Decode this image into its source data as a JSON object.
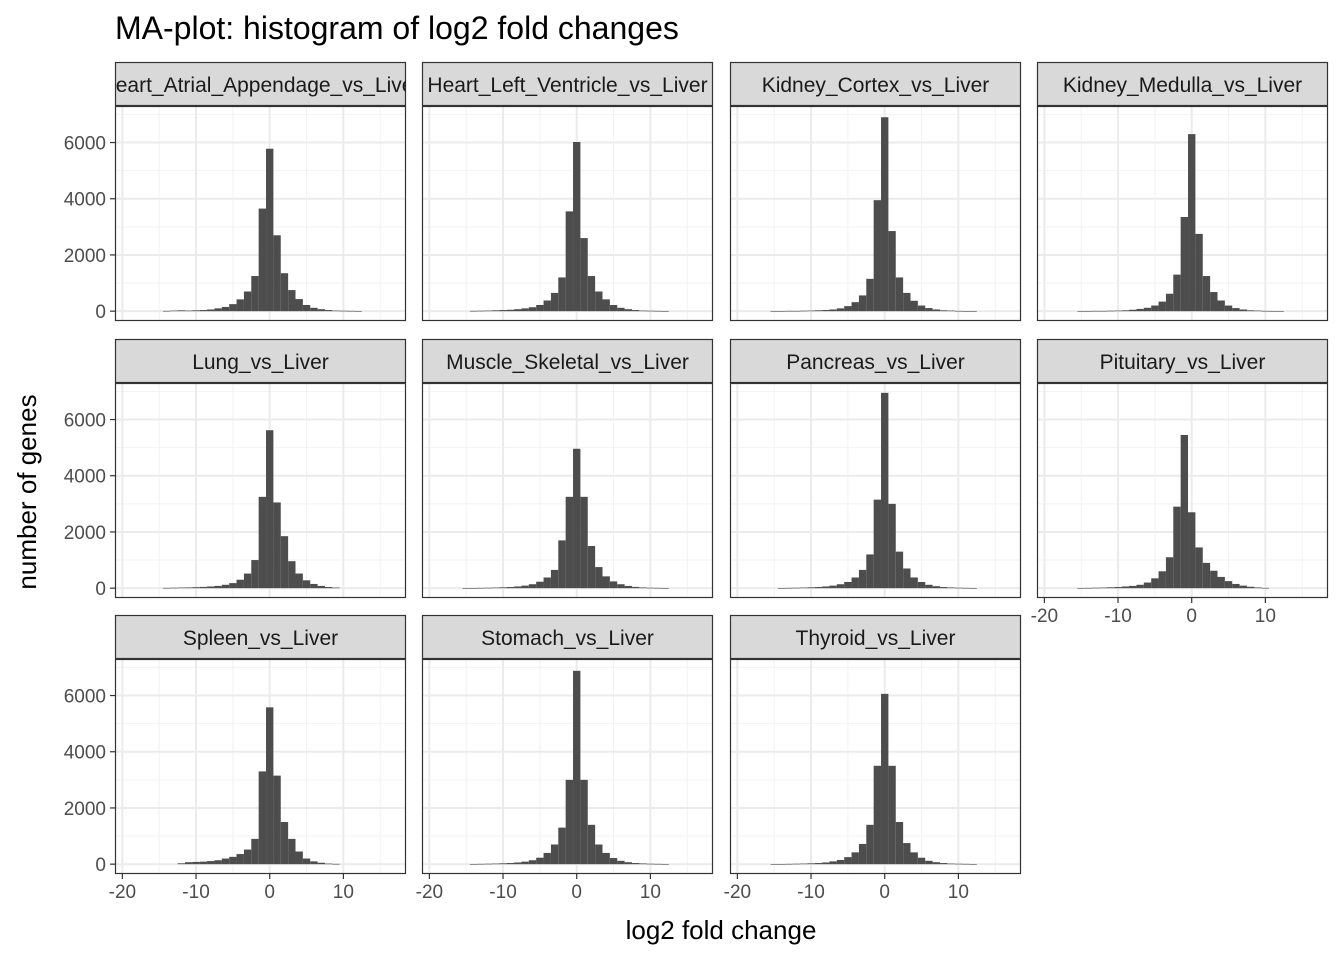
{
  "chart_data": {
    "type": "bar",
    "title": "MA-plot: histogram of log2 fold changes",
    "xlabel": "log2 fold change",
    "ylabel": "number of genes",
    "xlim": [
      -21,
      18.5
    ],
    "ylim": [
      -350,
      7300
    ],
    "x_ticks": [
      -20,
      -10,
      0,
      10
    ],
    "x_tick_labels": [
      "-20",
      "-10",
      "0",
      "10"
    ],
    "y_ticks": [
      0,
      2000,
      4000,
      6000
    ],
    "y_tick_labels": [
      "0",
      "2000",
      "4000",
      "6000"
    ],
    "bin_width": 1,
    "grid": true,
    "colors": {
      "bar": "#4d4d4d",
      "strip": "#d9d9d9",
      "panel_border": "#333333",
      "grid_major": "#ebebeb"
    },
    "facets": [
      {
        "label": "Heart_Atrial_Appendage_vs_Liver",
        "x": [
          -14,
          -13,
          -12,
          -11,
          -10,
          -9,
          -8,
          -7,
          -6,
          -5,
          -4,
          -3,
          -2,
          -1,
          0,
          1,
          2,
          3,
          4,
          5,
          6,
          7,
          8,
          9,
          10,
          11,
          12
        ],
        "values": [
          10,
          20,
          30,
          20,
          30,
          40,
          60,
          100,
          150,
          250,
          420,
          700,
          1250,
          3650,
          5780,
          2700,
          1350,
          750,
          430,
          220,
          120,
          70,
          40,
          20,
          15,
          10,
          5
        ]
      },
      {
        "label": "Heart_Left_Ventricle_vs_Liver",
        "x": [
          -14,
          -13,
          -12,
          -11,
          -10,
          -9,
          -8,
          -7,
          -6,
          -5,
          -4,
          -3,
          -2,
          -1,
          0,
          1,
          2,
          3,
          4,
          5,
          6,
          7,
          8,
          9,
          10,
          11,
          12
        ],
        "values": [
          10,
          15,
          20,
          30,
          40,
          50,
          70,
          100,
          140,
          220,
          380,
          650,
          1200,
          3550,
          6020,
          2600,
          1250,
          700,
          420,
          220,
          120,
          70,
          40,
          20,
          15,
          10,
          5
        ]
      },
      {
        "label": "Kidney_Cortex_vs_Liver",
        "x": [
          -15,
          -14,
          -13,
          -12,
          -11,
          -10,
          -9,
          -8,
          -7,
          -6,
          -5,
          -4,
          -3,
          -2,
          -1,
          0,
          1,
          2,
          3,
          4,
          5,
          6,
          7,
          8,
          9,
          10,
          11,
          12
        ],
        "values": [
          5,
          5,
          10,
          10,
          15,
          20,
          30,
          40,
          60,
          100,
          180,
          320,
          560,
          1150,
          3950,
          6900,
          2850,
          1200,
          650,
          370,
          200,
          110,
          60,
          30,
          20,
          10,
          5,
          5
        ]
      },
      {
        "label": "Kidney_Medulla_vs_Liver",
        "x": [
          -15,
          -14,
          -13,
          -12,
          -11,
          -10,
          -9,
          -8,
          -7,
          -6,
          -5,
          -4,
          -3,
          -2,
          -1,
          0,
          1,
          2,
          3,
          4,
          5,
          6,
          7,
          8,
          9,
          10,
          11,
          12
        ],
        "values": [
          5,
          5,
          10,
          10,
          15,
          20,
          30,
          50,
          80,
          120,
          200,
          340,
          620,
          1300,
          3350,
          6300,
          2750,
          1250,
          680,
          380,
          200,
          110,
          60,
          30,
          20,
          10,
          5,
          5
        ]
      },
      {
        "label": "Lung_vs_Liver",
        "x": [
          -14,
          -13,
          -12,
          -11,
          -10,
          -9,
          -8,
          -7,
          -6,
          -5,
          -4,
          -3,
          -2,
          -1,
          0,
          1,
          2,
          3,
          4,
          5,
          6,
          7,
          8,
          9
        ],
        "values": [
          10,
          15,
          20,
          25,
          35,
          45,
          60,
          80,
          120,
          180,
          300,
          520,
          1000,
          3250,
          5620,
          3050,
          1850,
          960,
          520,
          280,
          150,
          80,
          40,
          20
        ]
      },
      {
        "label": "Muscle_Skeletal_vs_Liver",
        "x": [
          -15,
          -14,
          -13,
          -12,
          -11,
          -10,
          -9,
          -8,
          -7,
          -6,
          -5,
          -4,
          -3,
          -2,
          -1,
          0,
          1,
          2,
          3,
          4,
          5,
          6,
          7,
          8,
          9,
          10,
          11,
          12
        ],
        "values": [
          5,
          5,
          10,
          15,
          20,
          30,
          40,
          60,
          90,
          140,
          230,
          380,
          650,
          1700,
          3250,
          4960,
          3250,
          1500,
          750,
          420,
          240,
          140,
          80,
          45,
          25,
          15,
          10,
          5
        ]
      },
      {
        "label": "Pancreas_vs_Liver",
        "x": [
          -14,
          -13,
          -12,
          -11,
          -10,
          -9,
          -8,
          -7,
          -6,
          -5,
          -4,
          -3,
          -2,
          -1,
          0,
          1,
          2,
          3,
          4,
          5,
          6,
          7,
          8,
          9,
          10,
          11,
          12
        ],
        "values": [
          5,
          10,
          15,
          20,
          30,
          40,
          60,
          90,
          140,
          220,
          380,
          650,
          1200,
          3150,
          6950,
          3000,
          1300,
          700,
          380,
          220,
          120,
          70,
          40,
          25,
          15,
          10,
          5
        ]
      },
      {
        "label": "Pituitary_vs_Liver",
        "x": [
          -15,
          -14,
          -13,
          -12,
          -11,
          -10,
          -9,
          -8,
          -7,
          -6,
          -5,
          -4,
          -3,
          -2,
          -1,
          0,
          1,
          2,
          3,
          4,
          5,
          6,
          7,
          8,
          9,
          10
        ],
        "values": [
          5,
          10,
          15,
          20,
          30,
          40,
          60,
          80,
          120,
          200,
          350,
          600,
          1100,
          2900,
          5450,
          2700,
          1450,
          900,
          620,
          400,
          250,
          150,
          90,
          50,
          25,
          10
        ]
      },
      {
        "label": "Spleen_vs_Liver",
        "x": [
          -12,
          -11,
          -10,
          -9,
          -8,
          -7,
          -6,
          -5,
          -4,
          -3,
          -2,
          -1,
          0,
          1,
          2,
          3,
          4,
          5,
          6,
          7,
          8,
          9
        ],
        "values": [
          30,
          70,
          80,
          90,
          110,
          140,
          200,
          260,
          360,
          520,
          900,
          3300,
          5580,
          3150,
          1500,
          900,
          450,
          200,
          100,
          50,
          20,
          10
        ]
      },
      {
        "label": "Stomach_vs_Liver",
        "x": [
          -14,
          -13,
          -12,
          -11,
          -10,
          -9,
          -8,
          -7,
          -6,
          -5,
          -4,
          -3,
          -2,
          -1,
          0,
          1,
          2,
          3,
          4,
          5,
          6,
          7,
          8,
          9,
          10,
          11,
          12
        ],
        "values": [
          5,
          10,
          15,
          20,
          30,
          40,
          60,
          90,
          140,
          230,
          400,
          700,
          1300,
          3000,
          6880,
          3000,
          1400,
          700,
          400,
          220,
          120,
          70,
          40,
          25,
          15,
          10,
          5
        ]
      },
      {
        "label": "Thyroid_vs_Liver",
        "x": [
          -15,
          -14,
          -13,
          -12,
          -11,
          -10,
          -9,
          -8,
          -7,
          -6,
          -5,
          -4,
          -3,
          -2,
          -1,
          0,
          1,
          2,
          3,
          4,
          5,
          6,
          7,
          8,
          9,
          10,
          11,
          12
        ],
        "values": [
          5,
          5,
          10,
          15,
          20,
          30,
          40,
          60,
          100,
          150,
          250,
          420,
          720,
          1400,
          3500,
          6060,
          3500,
          1500,
          750,
          420,
          230,
          120,
          70,
          40,
          20,
          15,
          10,
          5
        ]
      }
    ]
  }
}
